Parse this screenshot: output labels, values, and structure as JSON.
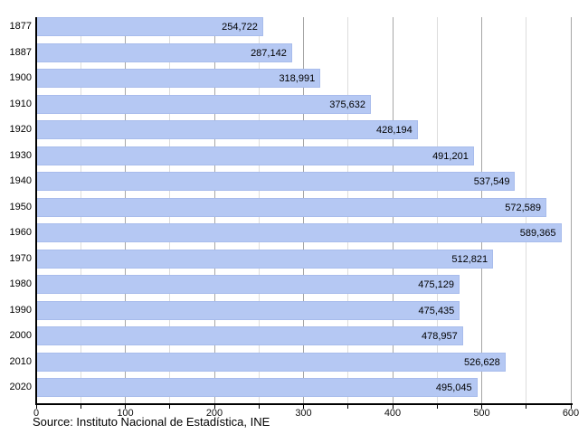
{
  "chart_data": {
    "type": "bar",
    "orientation": "horizontal",
    "title": "",
    "xlabel": "",
    "ylabel": "",
    "categories": [
      "1877",
      "1887",
      "1900",
      "1910",
      "1920",
      "1930",
      "1940",
      "1950",
      "1960",
      "1970",
      "1980",
      "1990",
      "2000",
      "2010",
      "2020"
    ],
    "values": [
      254722,
      287142,
      318991,
      375632,
      428194,
      491201,
      537549,
      572589,
      589365,
      512821,
      475129,
      475435,
      478957,
      526628,
      495045
    ],
    "value_labels": [
      "254,722",
      "287,142",
      "318,991",
      "375,632",
      "428,194",
      "491,201",
      "537,549",
      "572,589",
      "589,365",
      "512,821",
      "475,129",
      "475,435",
      "478,957",
      "526,628",
      "495,045"
    ],
    "xlim": [
      0,
      600
    ],
    "x_axis_unit_divisor": 1000,
    "x_tick_labels": [
      "0",
      "100",
      "200",
      "300",
      "400",
      "500",
      "600"
    ],
    "x_major_tick_step": 100,
    "x_minor_tick_step": 50,
    "grid": true,
    "legend": "none",
    "bar_color": "#b5c8f3",
    "bar_border_color": "#a8bcec",
    "grid_major_color": "#a6a6a6",
    "grid_minor_color": "#dcdcdc",
    "axis_color": "#000000",
    "label_color": "#000000"
  },
  "footer": {
    "source": "Source: Instituto Nacional de Estadística, INE"
  }
}
